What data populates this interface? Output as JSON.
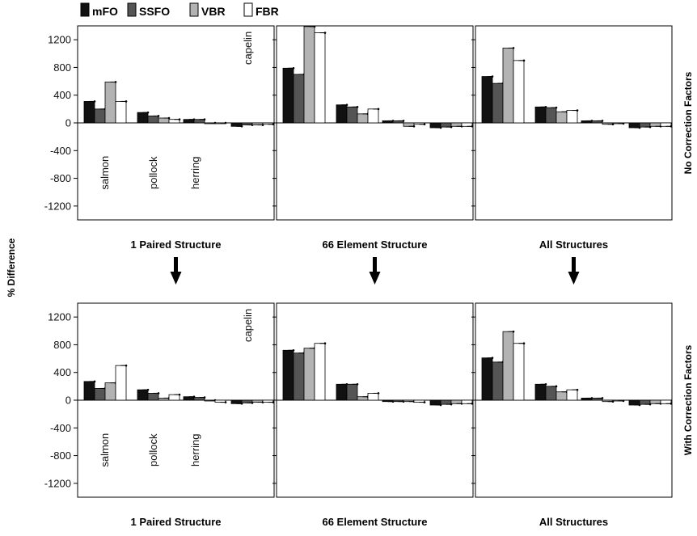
{
  "ylabel": "% Difference",
  "row_labels": [
    "No Correction Factors",
    "With Correction Factors"
  ],
  "legend": [
    {
      "name": "mFO",
      "color": "#111111"
    },
    {
      "name": "SSFO",
      "color": "#555555"
    },
    {
      "name": "VBR",
      "color": "#b3b3b3"
    },
    {
      "name": "FBR",
      "color": "#ffffff"
    }
  ],
  "chart_data": [
    {
      "type": "bar",
      "row": "No Correction Factors",
      "xlabel": "1 Paired Structure",
      "categories": [
        "salmon",
        "pollock",
        "herring",
        "capelin"
      ],
      "ylim": [
        -1400,
        1400
      ],
      "yticks": [
        1200,
        800,
        400,
        0,
        -400,
        -800,
        -1200
      ],
      "series": [
        {
          "name": "mFO",
          "values": [
            310,
            150,
            50,
            -50
          ]
        },
        {
          "name": "SSFO",
          "values": [
            200,
            100,
            50,
            -30
          ]
        },
        {
          "name": "VBR",
          "values": [
            590,
            70,
            0,
            -30
          ]
        },
        {
          "name": "FBR",
          "values": [
            310,
            50,
            0,
            -20
          ]
        }
      ]
    },
    {
      "type": "bar",
      "row": "No Correction Factors",
      "xlabel": "66 Element Structure",
      "categories": [
        "salmon",
        "pollock",
        "herring",
        "capelin"
      ],
      "ylim": [
        -1400,
        1400
      ],
      "yticks": [
        1200,
        800,
        400,
        0,
        -400,
        -800,
        -1200
      ],
      "series": [
        {
          "name": "mFO",
          "values": [
            790,
            260,
            30,
            -70
          ]
        },
        {
          "name": "SSFO",
          "values": [
            700,
            230,
            30,
            -60
          ]
        },
        {
          "name": "VBR",
          "values": [
            1390,
            130,
            -50,
            -50
          ]
        },
        {
          "name": "FBR",
          "values": [
            1300,
            200,
            -20,
            -50
          ]
        }
      ]
    },
    {
      "type": "bar",
      "row": "No Correction Factors",
      "xlabel": "All Structures",
      "categories": [
        "salmon",
        "pollock",
        "herring",
        "capelin"
      ],
      "ylim": [
        -1400,
        1400
      ],
      "yticks": [
        1200,
        800,
        400,
        0,
        -400,
        -800,
        -1200
      ],
      "series": [
        {
          "name": "mFO",
          "values": [
            670,
            230,
            30,
            -70
          ]
        },
        {
          "name": "SSFO",
          "values": [
            570,
            220,
            30,
            -60
          ]
        },
        {
          "name": "VBR",
          "values": [
            1080,
            160,
            -20,
            -50
          ]
        },
        {
          "name": "FBR",
          "values": [
            900,
            180,
            -10,
            -50
          ]
        }
      ]
    },
    {
      "type": "bar",
      "row": "With Correction Factors",
      "xlabel": "1 Paired Structure",
      "categories": [
        "salmon",
        "pollock",
        "herring",
        "capelin"
      ],
      "ylim": [
        -1400,
        1400
      ],
      "yticks": [
        1200,
        800,
        400,
        0,
        -400,
        -800,
        -1200
      ],
      "series": [
        {
          "name": "mFO",
          "values": [
            270,
            150,
            50,
            -50
          ]
        },
        {
          "name": "SSFO",
          "values": [
            170,
            100,
            40,
            -40
          ]
        },
        {
          "name": "VBR",
          "values": [
            250,
            30,
            0,
            -30
          ]
        },
        {
          "name": "FBR",
          "values": [
            500,
            80,
            -30,
            -30
          ]
        }
      ]
    },
    {
      "type": "bar",
      "row": "With Correction Factors",
      "xlabel": "66 Element Structure",
      "categories": [
        "salmon",
        "pollock",
        "herring",
        "capelin"
      ],
      "ylim": [
        -1400,
        1400
      ],
      "yticks": [
        1200,
        800,
        400,
        0,
        -400,
        -800,
        -1200
      ],
      "series": [
        {
          "name": "mFO",
          "values": [
            720,
            230,
            -20,
            -70
          ]
        },
        {
          "name": "SSFO",
          "values": [
            680,
            230,
            -20,
            -60
          ]
        },
        {
          "name": "VBR",
          "values": [
            750,
            50,
            -20,
            -50
          ]
        },
        {
          "name": "FBR",
          "values": [
            820,
            100,
            -30,
            -50
          ]
        }
      ]
    },
    {
      "type": "bar",
      "row": "With Correction Factors",
      "xlabel": "All Structures",
      "categories": [
        "salmon",
        "pollock",
        "herring",
        "capelin"
      ],
      "ylim": [
        -1400,
        1400
      ],
      "yticks": [
        1200,
        800,
        400,
        0,
        -400,
        -800,
        -1200
      ],
      "series": [
        {
          "name": "mFO",
          "values": [
            610,
            230,
            30,
            -70
          ]
        },
        {
          "name": "SSFO",
          "values": [
            550,
            200,
            30,
            -60
          ]
        },
        {
          "name": "VBR",
          "values": [
            990,
            120,
            -20,
            -50
          ]
        },
        {
          "name": "FBR",
          "values": [
            820,
            150,
            -10,
            -50
          ]
        }
      ]
    }
  ]
}
